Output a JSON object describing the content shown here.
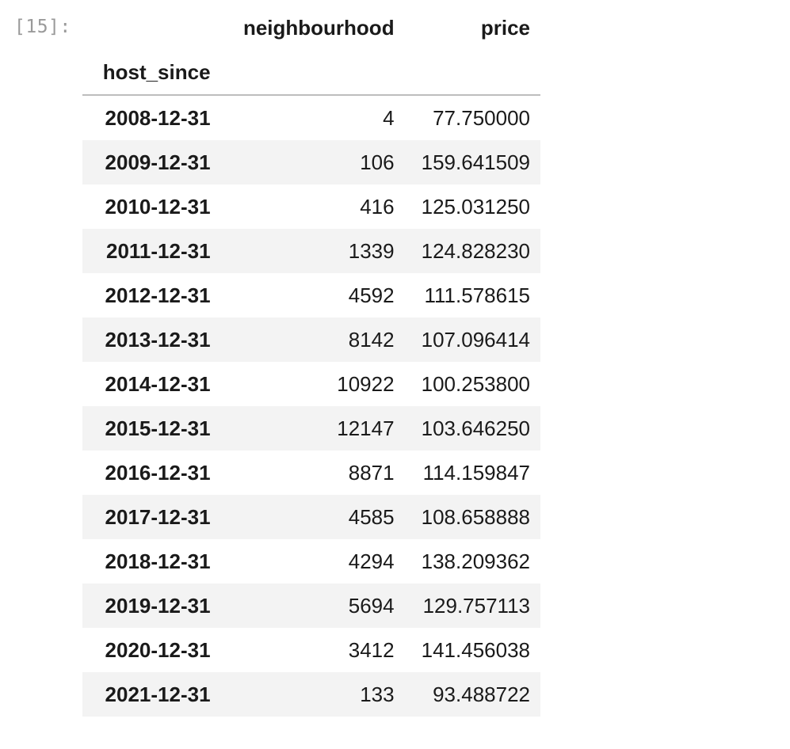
{
  "cell": {
    "prompt": "[15]:"
  },
  "table": {
    "columns": [
      "neighbourhood",
      "price"
    ],
    "index_name": "host_since",
    "rows": [
      {
        "index": "2008-12-31",
        "neighbourhood": "4",
        "price": "77.750000"
      },
      {
        "index": "2009-12-31",
        "neighbourhood": "106",
        "price": "159.641509"
      },
      {
        "index": "2010-12-31",
        "neighbourhood": "416",
        "price": "125.031250"
      },
      {
        "index": "2011-12-31",
        "neighbourhood": "1339",
        "price": "124.828230"
      },
      {
        "index": "2012-12-31",
        "neighbourhood": "4592",
        "price": "111.578615"
      },
      {
        "index": "2013-12-31",
        "neighbourhood": "8142",
        "price": "107.096414"
      },
      {
        "index": "2014-12-31",
        "neighbourhood": "10922",
        "price": "100.253800"
      },
      {
        "index": "2015-12-31",
        "neighbourhood": "12147",
        "price": "103.646250"
      },
      {
        "index": "2016-12-31",
        "neighbourhood": "8871",
        "price": "114.159847"
      },
      {
        "index": "2017-12-31",
        "neighbourhood": "4585",
        "price": "108.658888"
      },
      {
        "index": "2018-12-31",
        "neighbourhood": "4294",
        "price": "138.209362"
      },
      {
        "index": "2019-12-31",
        "neighbourhood": "5694",
        "price": "129.757113"
      },
      {
        "index": "2020-12-31",
        "neighbourhood": "3412",
        "price": "141.456038"
      },
      {
        "index": "2021-12-31",
        "neighbourhood": "133",
        "price": "93.488722"
      }
    ]
  },
  "colors": {
    "prompt": "#9a9a9a",
    "stripe": "#f3f3f3",
    "border": "#bdbdbd"
  }
}
